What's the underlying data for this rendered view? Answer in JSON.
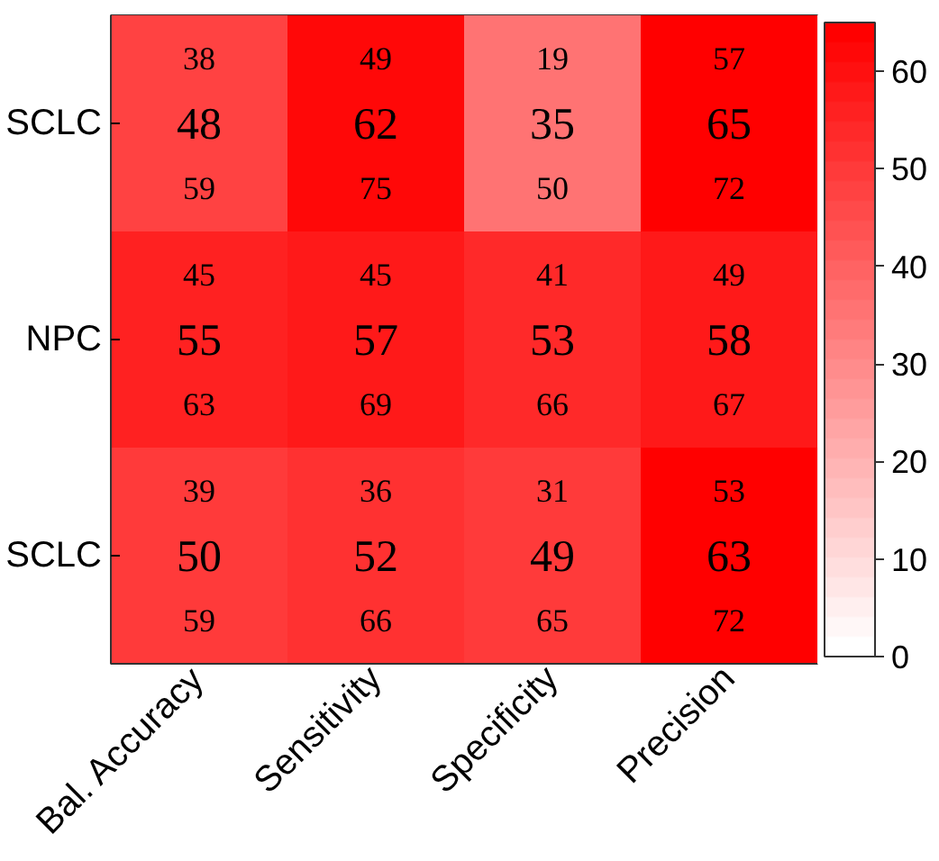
{
  "chart_data": {
    "type": "heatmap",
    "categories": [
      "Bal. Accuracy",
      "Sensitivity",
      "Specificity",
      "Precision"
    ],
    "y_categories": [
      "SCLC",
      "NPC",
      "SCLC"
    ],
    "cells": [
      [
        48,
        62,
        35,
        65
      ],
      [
        55,
        57,
        53,
        58
      ],
      [
        50,
        52,
        49,
        63
      ]
    ],
    "cell_labels": [
      [
        "38\n48\n59",
        "49\n62\n75",
        "19\n35\n50",
        "57\n65\n72"
      ],
      [
        "45\n55\n63",
        "45\n57\n69",
        "41\n53\n66",
        "49\n58\n67"
      ],
      [
        "39\n50\n59",
        "36\n52\n66",
        "31\n49\n65",
        "53\n63\n72"
      ]
    ],
    "color": "#ff0000",
    "clim": [
      0,
      65
    ],
    "cticks": [
      0,
      10,
      20,
      30,
      40,
      50,
      60
    ]
  }
}
